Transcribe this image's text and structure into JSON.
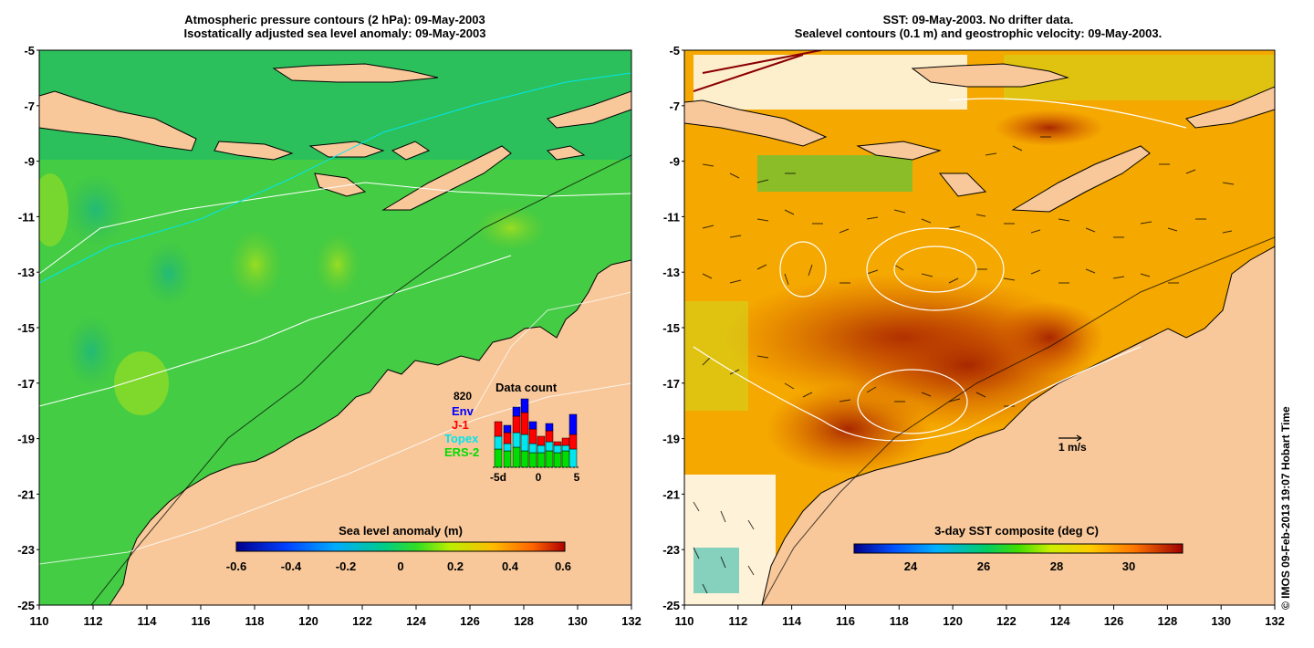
{
  "left_panel": {
    "title_line1": "Atmospheric pressure contours (2 hPa): 09-May-2003",
    "title_line2": "Isostatically adjusted sea level anomaly: 09-May-2003",
    "colorbar_label": "Sea level anomaly (m)",
    "colorbar_ticks": [
      "-0.6",
      "-0.4",
      "-0.2",
      "0",
      "0.2",
      "0.4",
      "0.6"
    ]
  },
  "right_panel": {
    "title_line1": "SST: 09-May-2003. No drifter data.",
    "title_line2": "Sealevel contours (0.1 m) and geostrophic velocity: 09-May-2003.",
    "colorbar_label": "3-day SST composite (deg C)",
    "colorbar_ticks": [
      "24",
      "26",
      "28",
      "30"
    ],
    "velocity_scale_label": "1 m/s"
  },
  "axes": {
    "x_ticks": [
      "110",
      "112",
      "114",
      "116",
      "118",
      "120",
      "122",
      "124",
      "126",
      "128",
      "130",
      "132"
    ],
    "y_ticks": [
      "-5",
      "-7",
      "-9",
      "-11",
      "-13",
      "-15",
      "-17",
      "-19",
      "-21",
      "-23",
      "-25"
    ],
    "x_range": [
      110,
      132
    ],
    "y_range": [
      -25,
      -5
    ]
  },
  "inset": {
    "title": "Data count",
    "max_label": "820",
    "legend": [
      {
        "name": "Env",
        "color": "#0000ff"
      },
      {
        "name": "J-1",
        "color": "#ff0000"
      },
      {
        "name": "Topex",
        "color": "#00e5ee"
      },
      {
        "name": "ERS-2",
        "color": "#00dd00"
      }
    ],
    "x_ticks": [
      "-5d",
      "0",
      "5"
    ]
  },
  "credit": "© IMOS 09-Feb-2013 19:07 Hobart Time",
  "colors": {
    "land": "#f8c89a",
    "sea_green": "#33cc33",
    "sst_orange": "#f5a800",
    "sst_red": "#b83200"
  }
}
